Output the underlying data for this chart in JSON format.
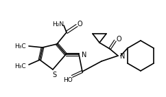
{
  "bg": "#ffffff",
  "lw": 1.2,
  "lw2": 0.8,
  "figsize": [
    2.42,
    1.42
  ],
  "dpi": 100
}
